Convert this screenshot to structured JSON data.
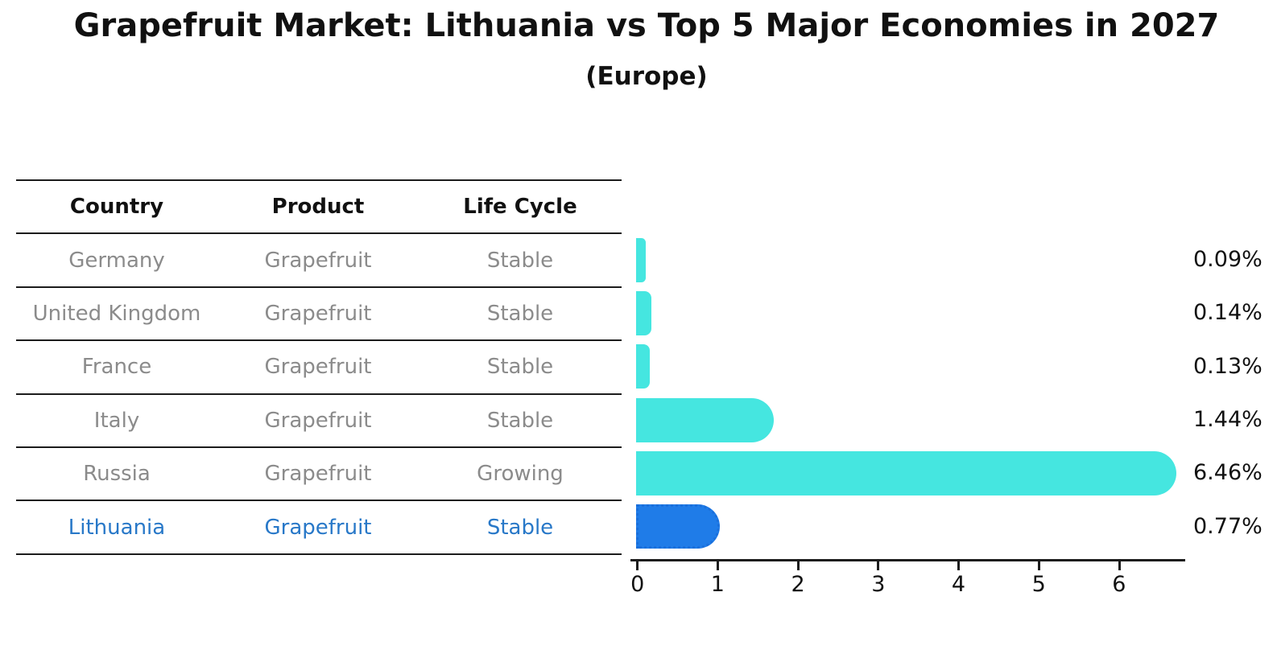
{
  "title": "Grapefruit Market: Lithuania vs Top 5 Major Economies in 2027",
  "subtitle": "(Europe)",
  "table": {
    "headers": [
      "Country",
      "Product",
      "Life Cycle"
    ],
    "rows": [
      {
        "country": "Germany",
        "product": "Grapefruit",
        "life_cycle": "Stable"
      },
      {
        "country": "United Kingdom",
        "product": "Grapefruit",
        "life_cycle": "Stable"
      },
      {
        "country": "France",
        "product": "Grapefruit",
        "life_cycle": "Stable"
      },
      {
        "country": "Italy",
        "product": "Grapefruit",
        "life_cycle": "Stable"
      },
      {
        "country": "Russia",
        "product": "Grapefruit",
        "life_cycle": "Growing"
      },
      {
        "country": "Lithuania",
        "product": "Grapefruit",
        "life_cycle": "Stable"
      }
    ],
    "highlighted_row": "Lithuania"
  },
  "chart_data": {
    "type": "bar",
    "orientation": "horizontal",
    "title": "Grapefruit Market: Lithuania vs Top 5 Major Economies in 2027",
    "subtitle": "(Europe)",
    "categories": [
      "Germany",
      "United Kingdom",
      "France",
      "Italy",
      "Russia",
      "Lithuania"
    ],
    "values": [
      0.09,
      0.14,
      0.13,
      1.44,
      6.46,
      0.77
    ],
    "value_labels": [
      "0.09%",
      "0.14%",
      "0.13%",
      "1.44%",
      "6.46%",
      "0.77%"
    ],
    "x_ticks": [
      "0",
      "1",
      "2",
      "3",
      "4",
      "5",
      "6"
    ],
    "xlim": [
      0,
      6.8
    ],
    "grid": false,
    "legend": false,
    "highlight_index": 5,
    "xlabel": "",
    "ylabel": ""
  },
  "colors": {
    "bar": "#45e6e0",
    "highlight_bar": "#1f7ce8",
    "highlight_bar_border": "#1a6fdb",
    "highlight_text": "#2878c8",
    "row_text": "#8b8b8b",
    "header_text": "#111111",
    "line": "#1c1c1c",
    "label_text": "#111111"
  }
}
